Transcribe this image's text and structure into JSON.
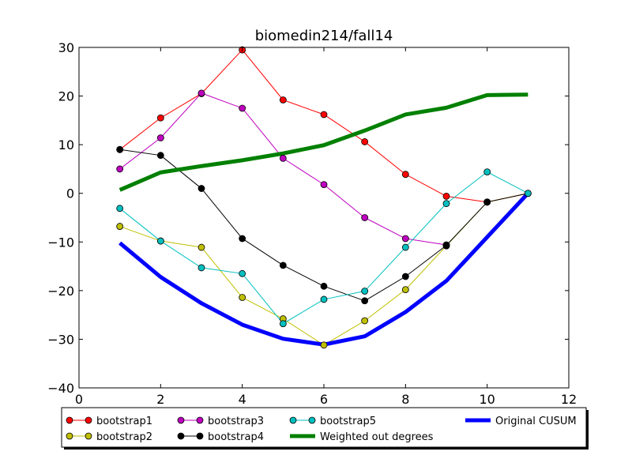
{
  "chart_data": {
    "type": "line",
    "title": "biomedin214/fall14",
    "xlabel": "",
    "ylabel": "",
    "xlim": [
      0,
      12
    ],
    "ylim": [
      -40,
      30
    ],
    "xticks": [
      0,
      2,
      4,
      6,
      8,
      10,
      12
    ],
    "yticks": [
      -40,
      -30,
      -20,
      -10,
      0,
      10,
      20,
      30
    ],
    "ytick_labels": [
      "−40",
      "−30",
      "−20",
      "−10",
      "0",
      "10",
      "20",
      "30"
    ],
    "grid": false,
    "legend_position": "below-plot",
    "series": [
      {
        "name": "bootstrap1",
        "color": "#ff0000",
        "marker": "circle",
        "linewidth": 1,
        "x": [
          1,
          2,
          3,
          4,
          5,
          6,
          7,
          8,
          9,
          10,
          11
        ],
        "y": [
          9.0,
          15.5,
          20.5,
          29.5,
          19.2,
          16.2,
          10.6,
          3.9,
          -0.6,
          -1.8,
          0
        ]
      },
      {
        "name": "bootstrap2",
        "color": "#bfbf00",
        "marker": "circle",
        "linewidth": 1,
        "x": [
          1,
          2,
          3,
          4,
          5,
          6,
          7,
          8,
          9,
          10,
          11
        ],
        "y": [
          -6.8,
          -9.8,
          -11.1,
          -21.4,
          -25.8,
          -31.2,
          -26.2,
          -19.8,
          -10.8,
          -1.8,
          0
        ]
      },
      {
        "name": "bootstrap3",
        "color": "#bf00bf",
        "marker": "circle",
        "linewidth": 1,
        "x": [
          1,
          2,
          3,
          4,
          5,
          6,
          7,
          8,
          9
        ],
        "y": [
          5.0,
          11.4,
          20.6,
          17.5,
          7.2,
          1.8,
          -5.0,
          -9.3,
          -10.6
        ]
      },
      {
        "name": "bootstrap4",
        "color": "#000000",
        "marker": "circle",
        "linewidth": 1,
        "x": [
          1,
          2,
          3,
          4,
          5,
          6,
          7,
          8,
          9,
          10,
          11
        ],
        "y": [
          9.0,
          7.8,
          1.0,
          -9.3,
          -14.8,
          -19.1,
          -22.1,
          -17.1,
          -10.7,
          -1.8,
          0
        ]
      },
      {
        "name": "bootstrap5",
        "color": "#00bfbf",
        "marker": "circle",
        "linewidth": 1,
        "x": [
          1,
          2,
          3,
          4,
          5,
          6,
          7,
          8,
          9,
          10,
          11
        ],
        "y": [
          -3.1,
          -9.8,
          -15.3,
          -16.5,
          -26.8,
          -21.8,
          -20.1,
          -11.1,
          -2.1,
          4.4,
          0
        ]
      },
      {
        "name": "Weighted out degrees",
        "color": "#008000",
        "marker": "none",
        "linewidth": 5,
        "x": [
          1,
          2,
          3,
          4,
          5,
          6,
          7,
          8,
          9,
          10,
          11
        ],
        "y": [
          0.7,
          4.3,
          5.6,
          6.8,
          8.2,
          9.9,
          12.9,
          16.2,
          17.6,
          20.2,
          20.3
        ]
      },
      {
        "name": "Original CUSUM",
        "color": "#0000ff",
        "marker": "none",
        "linewidth": 5,
        "x": [
          1,
          2,
          3,
          4,
          5,
          6,
          7,
          8,
          9,
          10,
          11
        ],
        "y": [
          -10.2,
          -17.2,
          -22.6,
          -27.0,
          -29.9,
          -31.1,
          -29.4,
          -24.4,
          -18.0,
          -9.0,
          0
        ]
      }
    ]
  }
}
